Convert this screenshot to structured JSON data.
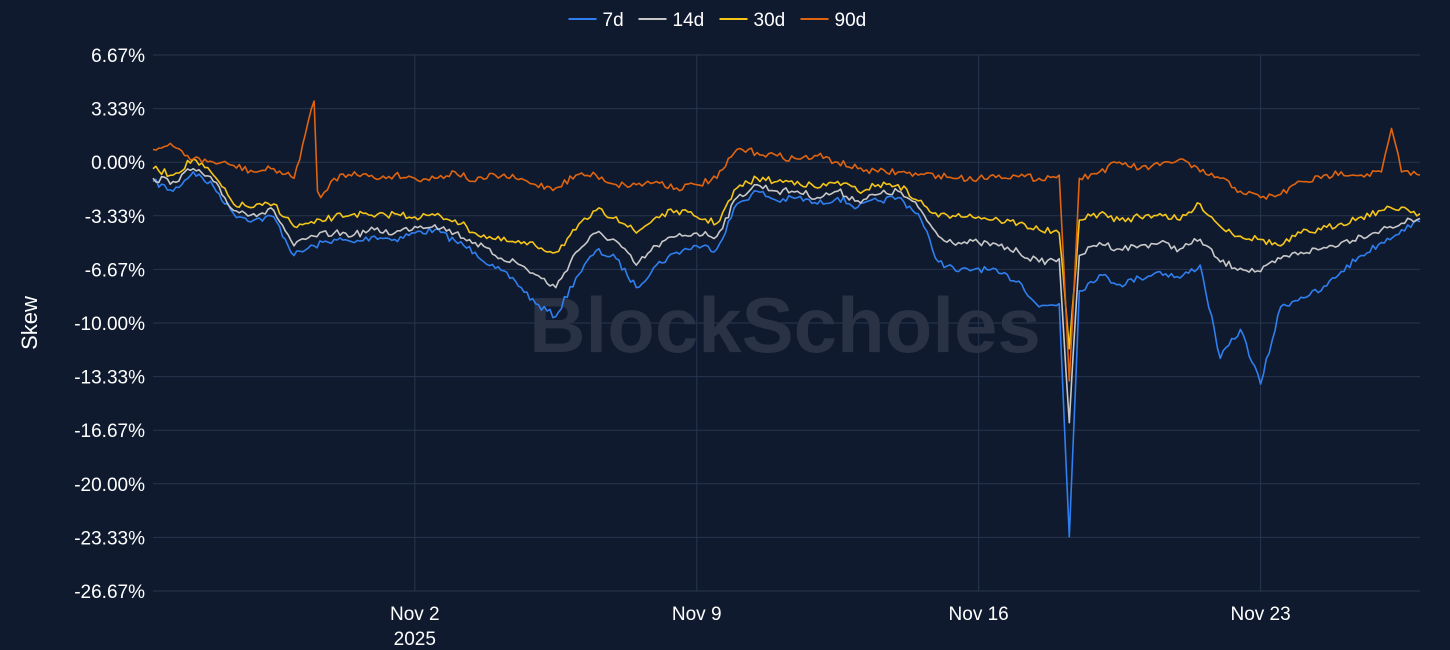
{
  "watermark": "BlockScholes",
  "chart_data": {
    "type": "line",
    "ylabel": "Skew",
    "x_ticks": [
      {
        "date": "2025-11-02",
        "label": "Nov 2",
        "sublabel": "2025"
      },
      {
        "date": "2025-11-09",
        "label": "Nov 9",
        "sublabel": ""
      },
      {
        "date": "2025-11-16",
        "label": "Nov 16",
        "sublabel": ""
      },
      {
        "date": "2025-11-23",
        "label": "Nov 23",
        "sublabel": ""
      }
    ],
    "y_ticks": [
      "6.67%",
      "3.33%",
      "0.00%",
      "-3.33%",
      "-6.67%",
      "-10.00%",
      "-13.33%",
      "-16.67%",
      "-20.00%",
      "-23.33%",
      "-26.67%"
    ],
    "ylim": [
      -26.67,
      6.67
    ],
    "xlim": [
      "2025-10-26T12:00",
      "2025-11-26T23:00"
    ],
    "grid": true,
    "legend_position": "top-center",
    "series": [
      {
        "name": "7d",
        "color": "#2f7ff0",
        "x": [
          "2025-10-26T12:00",
          "2025-10-27T00:00",
          "2025-10-27T12:00",
          "2025-10-28T00:00",
          "2025-10-28T12:00",
          "2025-10-29T00:00",
          "2025-10-29T12:00",
          "2025-10-30T00:00",
          "2025-10-30T12:00",
          "2025-10-31T00:00",
          "2025-10-31T12:00",
          "2025-11-01T00:00",
          "2025-11-01T12:00",
          "2025-11-02T00:00",
          "2025-11-02T12:00",
          "2025-11-03T00:00",
          "2025-11-03T12:00",
          "2025-11-04T00:00",
          "2025-11-04T12:00",
          "2025-11-05T00:00",
          "2025-11-05T12:00",
          "2025-11-06T00:00",
          "2025-11-06T12:00",
          "2025-11-07T00:00",
          "2025-11-07T12:00",
          "2025-11-08T00:00",
          "2025-11-08T12:00",
          "2025-11-09T00:00",
          "2025-11-09T12:00",
          "2025-11-10T00:00",
          "2025-11-10T12:00",
          "2025-11-11T00:00",
          "2025-11-11T12:00",
          "2025-11-12T00:00",
          "2025-11-12T12:00",
          "2025-11-13T00:00",
          "2025-11-13T12:00",
          "2025-11-14T00:00",
          "2025-11-14T12:00",
          "2025-11-15T00:00",
          "2025-11-15T12:00",
          "2025-11-16T00:00",
          "2025-11-16T12:00",
          "2025-11-17T00:00",
          "2025-11-17T12:00",
          "2025-11-18T00:00",
          "2025-11-18T06:00",
          "2025-11-18T12:00",
          "2025-11-19T00:00",
          "2025-11-19T12:00",
          "2025-11-20T00:00",
          "2025-11-20T12:00",
          "2025-11-21T00:00",
          "2025-11-21T12:00",
          "2025-11-22T00:00",
          "2025-11-22T12:00",
          "2025-11-23T00:00",
          "2025-11-23T12:00",
          "2025-11-24T00:00",
          "2025-11-24T12:00",
          "2025-11-25T00:00",
          "2025-11-25T12:00",
          "2025-11-26T00:00",
          "2025-11-26T12:00",
          "2025-11-26T23:00"
        ],
        "values": [
          -1.2,
          -1.8,
          -0.6,
          -1.5,
          -3.2,
          -3.6,
          -3.4,
          -5.8,
          -5.2,
          -4.8,
          -5.0,
          -4.6,
          -4.8,
          -4.4,
          -4.2,
          -4.9,
          -5.6,
          -6.6,
          -7.4,
          -8.8,
          -9.6,
          -7.2,
          -5.5,
          -6.0,
          -7.8,
          -6.4,
          -5.6,
          -5.2,
          -5.4,
          -2.6,
          -1.8,
          -2.4,
          -2.2,
          -2.6,
          -2.2,
          -2.8,
          -2.4,
          -2.2,
          -3.2,
          -6.2,
          -6.8,
          -6.6,
          -6.9,
          -7.4,
          -9.0,
          -8.8,
          -23.3,
          -8.0,
          -7.0,
          -7.6,
          -7.2,
          -6.8,
          -7.2,
          -6.4,
          -12.2,
          -10.4,
          -13.8,
          -9.0,
          -8.4,
          -8.0,
          -6.8,
          -5.8,
          -5.0,
          -4.2,
          -3.7
        ]
      },
      {
        "name": "14d",
        "color": "#c8c8c8",
        "x": [
          "2025-10-26T12:00",
          "2025-10-27T00:00",
          "2025-10-27T12:00",
          "2025-10-28T00:00",
          "2025-10-28T12:00",
          "2025-10-29T00:00",
          "2025-10-29T12:00",
          "2025-10-30T00:00",
          "2025-10-30T12:00",
          "2025-10-31T00:00",
          "2025-10-31T12:00",
          "2025-11-01T00:00",
          "2025-11-01T12:00",
          "2025-11-02T00:00",
          "2025-11-02T12:00",
          "2025-11-03T00:00",
          "2025-11-03T12:00",
          "2025-11-04T00:00",
          "2025-11-04T12:00",
          "2025-11-05T00:00",
          "2025-11-05T12:00",
          "2025-11-06T00:00",
          "2025-11-06T12:00",
          "2025-11-07T00:00",
          "2025-11-07T12:00",
          "2025-11-08T00:00",
          "2025-11-08T12:00",
          "2025-11-09T00:00",
          "2025-11-09T12:00",
          "2025-11-10T00:00",
          "2025-11-10T12:00",
          "2025-11-11T00:00",
          "2025-11-11T12:00",
          "2025-11-12T00:00",
          "2025-11-12T12:00",
          "2025-11-13T00:00",
          "2025-11-13T12:00",
          "2025-11-14T00:00",
          "2025-11-14T12:00",
          "2025-11-15T00:00",
          "2025-11-15T12:00",
          "2025-11-16T00:00",
          "2025-11-16T12:00",
          "2025-11-17T00:00",
          "2025-11-17T12:00",
          "2025-11-18T00:00",
          "2025-11-18T06:00",
          "2025-11-18T12:00",
          "2025-11-19T00:00",
          "2025-11-19T12:00",
          "2025-11-20T00:00",
          "2025-11-20T12:00",
          "2025-11-21T00:00",
          "2025-11-21T12:00",
          "2025-11-22T00:00",
          "2025-11-22T12:00",
          "2025-11-23T00:00",
          "2025-11-23T12:00",
          "2025-11-24T00:00",
          "2025-11-24T12:00",
          "2025-11-25T00:00",
          "2025-11-25T12:00",
          "2025-11-26T00:00",
          "2025-11-26T12:00",
          "2025-11-26T23:00"
        ],
        "values": [
          -1.0,
          -1.2,
          -0.4,
          -1.2,
          -3.0,
          -3.2,
          -3.0,
          -5.2,
          -4.6,
          -4.4,
          -4.5,
          -4.2,
          -4.4,
          -4.0,
          -3.9,
          -4.4,
          -5.0,
          -5.8,
          -6.2,
          -7.0,
          -7.8,
          -5.6,
          -4.4,
          -4.9,
          -6.4,
          -5.2,
          -4.6,
          -4.4,
          -4.6,
          -2.2,
          -1.4,
          -1.8,
          -1.8,
          -2.2,
          -1.8,
          -2.4,
          -2.0,
          -1.8,
          -2.8,
          -4.6,
          -5.0,
          -5.0,
          -5.2,
          -5.6,
          -6.2,
          -6.0,
          -16.2,
          -5.8,
          -5.0,
          -5.4,
          -5.2,
          -5.0,
          -5.4,
          -4.8,
          -6.2,
          -6.6,
          -6.8,
          -6.0,
          -5.6,
          -5.4,
          -5.0,
          -4.6,
          -4.2,
          -3.8,
          -3.5
        ]
      },
      {
        "name": "30d",
        "color": "#f5c518",
        "x": [
          "2025-10-26T12:00",
          "2025-10-27T00:00",
          "2025-10-27T12:00",
          "2025-10-28T00:00",
          "2025-10-28T12:00",
          "2025-10-29T00:00",
          "2025-10-29T12:00",
          "2025-10-30T00:00",
          "2025-10-30T12:00",
          "2025-10-31T00:00",
          "2025-10-31T12:00",
          "2025-11-01T00:00",
          "2025-11-01T12:00",
          "2025-11-02T00:00",
          "2025-11-02T12:00",
          "2025-11-03T00:00",
          "2025-11-03T12:00",
          "2025-11-04T00:00",
          "2025-11-04T12:00",
          "2025-11-05T00:00",
          "2025-11-05T12:00",
          "2025-11-06T00:00",
          "2025-11-06T12:00",
          "2025-11-07T00:00",
          "2025-11-07T12:00",
          "2025-11-08T00:00",
          "2025-11-08T12:00",
          "2025-11-09T00:00",
          "2025-11-09T12:00",
          "2025-11-10T00:00",
          "2025-11-10T12:00",
          "2025-11-11T00:00",
          "2025-11-11T12:00",
          "2025-11-12T00:00",
          "2025-11-12T12:00",
          "2025-11-13T00:00",
          "2025-11-13T12:00",
          "2025-11-14T00:00",
          "2025-11-14T12:00",
          "2025-11-15T00:00",
          "2025-11-15T12:00",
          "2025-11-16T00:00",
          "2025-11-16T12:00",
          "2025-11-17T00:00",
          "2025-11-17T12:00",
          "2025-11-18T00:00",
          "2025-11-18T06:00",
          "2025-11-18T12:00",
          "2025-11-19T00:00",
          "2025-11-19T12:00",
          "2025-11-20T00:00",
          "2025-11-20T12:00",
          "2025-11-21T00:00",
          "2025-11-21T12:00",
          "2025-11-22T00:00",
          "2025-11-22T12:00",
          "2025-11-23T00:00",
          "2025-11-23T12:00",
          "2025-11-24T00:00",
          "2025-11-24T12:00",
          "2025-11-25T00:00",
          "2025-11-25T12:00",
          "2025-11-26T00:00",
          "2025-11-26T12:00",
          "2025-11-26T23:00"
        ],
        "values": [
          -0.4,
          -0.8,
          0.2,
          -0.8,
          -2.6,
          -2.8,
          -2.6,
          -4.0,
          -3.8,
          -3.4,
          -3.2,
          -3.4,
          -3.2,
          -3.4,
          -3.3,
          -3.6,
          -4.4,
          -4.8,
          -5.0,
          -5.2,
          -5.6,
          -4.2,
          -3.0,
          -3.4,
          -4.4,
          -3.4,
          -3.0,
          -3.4,
          -3.8,
          -1.6,
          -1.0,
          -1.2,
          -1.2,
          -1.6,
          -1.2,
          -1.8,
          -1.4,
          -1.4,
          -2.4,
          -3.4,
          -3.2,
          -3.4,
          -3.6,
          -3.8,
          -4.2,
          -4.4,
          -11.6,
          -3.6,
          -3.2,
          -3.6,
          -3.4,
          -3.2,
          -3.6,
          -2.6,
          -4.0,
          -4.6,
          -4.8,
          -5.2,
          -4.4,
          -4.2,
          -3.8,
          -3.4,
          -3.0,
          -2.8,
          -3.2
        ]
      },
      {
        "name": "90d",
        "color": "#e0640f",
        "x": [
          "2025-10-26T12:00",
          "2025-10-27T00:00",
          "2025-10-27T12:00",
          "2025-10-28T00:00",
          "2025-10-28T12:00",
          "2025-10-29T00:00",
          "2025-10-29T12:00",
          "2025-10-30T00:00",
          "2025-10-30T12:00",
          "2025-10-30T14:00",
          "2025-10-30T16:00",
          "2025-10-31T00:00",
          "2025-10-31T12:00",
          "2025-11-01T00:00",
          "2025-11-01T12:00",
          "2025-11-02T00:00",
          "2025-11-02T12:00",
          "2025-11-03T00:00",
          "2025-11-03T12:00",
          "2025-11-04T00:00",
          "2025-11-04T12:00",
          "2025-11-05T00:00",
          "2025-11-05T12:00",
          "2025-11-06T00:00",
          "2025-11-06T12:00",
          "2025-11-07T00:00",
          "2025-11-07T12:00",
          "2025-11-08T00:00",
          "2025-11-08T12:00",
          "2025-11-09T00:00",
          "2025-11-09T12:00",
          "2025-11-10T00:00",
          "2025-11-10T12:00",
          "2025-11-11T00:00",
          "2025-11-11T12:00",
          "2025-11-12T00:00",
          "2025-11-12T12:00",
          "2025-11-13T00:00",
          "2025-11-13T12:00",
          "2025-11-14T00:00",
          "2025-11-14T12:00",
          "2025-11-15T00:00",
          "2025-11-15T12:00",
          "2025-11-16T00:00",
          "2025-11-16T12:00",
          "2025-11-17T00:00",
          "2025-11-17T12:00",
          "2025-11-18T00:00",
          "2025-11-18T06:00",
          "2025-11-18T12:00",
          "2025-11-19T00:00",
          "2025-11-19T12:00",
          "2025-11-20T00:00",
          "2025-11-20T12:00",
          "2025-11-21T00:00",
          "2025-11-21T12:00",
          "2025-11-22T00:00",
          "2025-11-22T12:00",
          "2025-11-23T00:00",
          "2025-11-23T12:00",
          "2025-11-24T00:00",
          "2025-11-24T12:00",
          "2025-11-25T00:00",
          "2025-11-25T12:00",
          "2025-11-26T00:00",
          "2025-11-26T06:00",
          "2025-11-26T12:00",
          "2025-11-26T23:00"
        ],
        "values": [
          0.8,
          1.0,
          0.2,
          0.0,
          -0.2,
          -0.6,
          -0.4,
          -1.0,
          3.8,
          -1.8,
          -2.2,
          -1.0,
          -0.6,
          -1.0,
          -0.8,
          -1.0,
          -1.0,
          -0.6,
          -1.2,
          -0.8,
          -1.0,
          -1.4,
          -1.6,
          -0.8,
          -0.8,
          -1.4,
          -1.4,
          -1.2,
          -1.6,
          -1.4,
          -1.0,
          0.8,
          0.6,
          0.4,
          0.2,
          0.4,
          0.0,
          -0.4,
          -0.6,
          -0.6,
          -0.8,
          -0.8,
          -1.0,
          -1.0,
          -0.8,
          -0.9,
          -1.0,
          -0.8,
          -13.6,
          -1.0,
          -0.6,
          0.0,
          -0.4,
          -0.2,
          0.2,
          -0.6,
          -1.0,
          -1.8,
          -2.2,
          -2.0,
          -1.2,
          -1.0,
          -0.6,
          -0.8,
          -0.6,
          2.1,
          -0.6,
          -0.8
        ]
      }
    ]
  }
}
